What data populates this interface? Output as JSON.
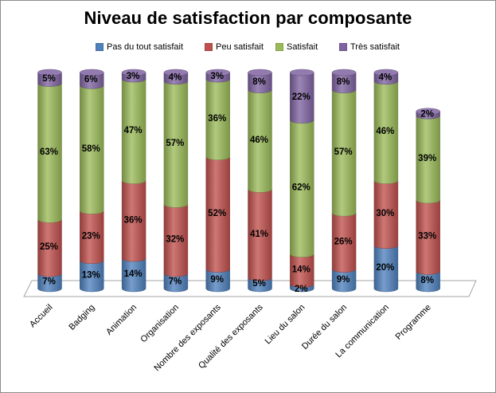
{
  "chart_data": {
    "type": "bar",
    "stacked": true,
    "three_d": true,
    "title": "Niveau de satisfaction par composante",
    "categories": [
      "Accueil",
      "Badging",
      "Animation",
      "Organisation",
      "Nombre des exposants",
      "Qualité des exposants",
      "Lieu du salon",
      "Durée du salon",
      "La communication",
      "Programme"
    ],
    "series": [
      {
        "name": "Pas du tout satisfait",
        "color": "#4F81BD",
        "values": [
          7,
          13,
          14,
          7,
          9,
          5,
          2,
          9,
          20,
          8
        ],
        "labels": [
          "7%",
          "13%",
          "14%",
          "7%",
          "9%",
          "5%",
          "2%",
          "9%",
          "20%",
          "8%"
        ]
      },
      {
        "name": "Peu satisfait",
        "color": "#C0504D",
        "values": [
          25,
          23,
          36,
          32,
          52,
          41,
          14,
          26,
          30,
          33
        ],
        "labels": [
          "25%",
          "23%",
          "36%",
          "32%",
          "52%",
          "41%",
          "14%",
          "26%",
          "30%",
          "33%"
        ]
      },
      {
        "name": "Satisfait",
        "color": "#9BBB59",
        "values": [
          63,
          58,
          47,
          57,
          36,
          46,
          62,
          57,
          46,
          39
        ],
        "labels": [
          "63%",
          "58%",
          "47%",
          "57%",
          "36%",
          "46%",
          "62%",
          "57%",
          "46%",
          "39%"
        ]
      },
      {
        "name": "Très satisfait",
        "color": "#8064A2",
        "values": [
          5,
          6,
          3,
          4,
          3,
          8,
          22,
          8,
          4,
          2
        ],
        "labels": [
          "5%",
          "6%",
          "3%",
          "4%",
          "3%",
          "8%",
          "22%",
          "8%",
          "4%",
          "2%"
        ]
      }
    ],
    "ylim": [
      0,
      100
    ],
    "grid": false,
    "legend_position": "top"
  }
}
